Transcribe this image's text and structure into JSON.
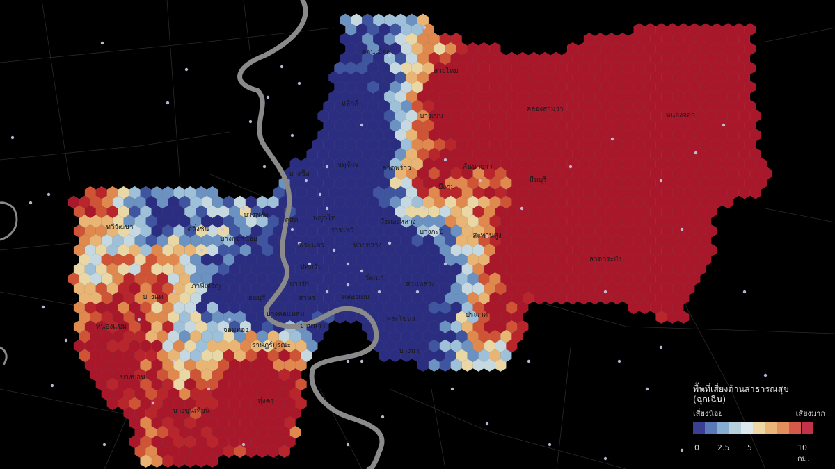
{
  "map": {
    "district_labels": [
      {
        "name": "ดอนเมือง"
      },
      {
        "name": "สายไหม"
      },
      {
        "name": "หลักสี่"
      },
      {
        "name": "คลองสามวา"
      },
      {
        "name": "หนองจอก"
      },
      {
        "name": "บางเขน"
      },
      {
        "name": "บางซื่อ"
      },
      {
        "name": "จตุจักร"
      },
      {
        "name": "ลาดพร้าว"
      },
      {
        "name": "คันนายาว"
      },
      {
        "name": "มีนบุรี"
      },
      {
        "name": "บึงกุ่ม"
      },
      {
        "name": "ทวีวัฒนา"
      },
      {
        "name": "ตลิ่งชัน"
      },
      {
        "name": "บางพลัด"
      },
      {
        "name": "ดุสิต"
      },
      {
        "name": "พญาไท"
      },
      {
        "name": "ราชเทวี"
      },
      {
        "name": "ห้วยขวาง"
      },
      {
        "name": "วังทองหลาง"
      },
      {
        "name": "บางกะปิ"
      },
      {
        "name": "สะพานสูง"
      },
      {
        "name": "ลาดกระบัง"
      },
      {
        "name": "บางกอกน้อย"
      },
      {
        "name": "พระนคร"
      },
      {
        "name": "ปทุมวัน"
      },
      {
        "name": "วัฒนา"
      },
      {
        "name": "สวนหลวง"
      },
      {
        "name": "ภาษีเจริญ"
      },
      {
        "name": "ธนบุรี"
      },
      {
        "name": "บางรัก"
      },
      {
        "name": "สาทร"
      },
      {
        "name": "คลองเตย"
      },
      {
        "name": "บางแค"
      },
      {
        "name": "หนองแขม"
      },
      {
        "name": "บางคอแหลม"
      },
      {
        "name": "ยานนาวา"
      },
      {
        "name": "พระโขนง"
      },
      {
        "name": "ประเวศ"
      },
      {
        "name": "จอมทอง"
      },
      {
        "name": "ราษฎร์บูรณะ"
      },
      {
        "name": "บางนา"
      },
      {
        "name": "บางบอน"
      },
      {
        "name": "ทุ่งครุ"
      },
      {
        "name": "บางขุนเทียน"
      }
    ],
    "palette": [
      "#2b2d80",
      "#3f55a0",
      "#6c92c2",
      "#9ec0d8",
      "#c6d8e0",
      "#e9d7a6",
      "#e8b574",
      "#e0894e",
      "#cf5436",
      "#b8262c",
      "#a8182a"
    ]
  },
  "legend": {
    "title_line1": "พื้นที่เสี่ยงด้านสาธารณสุข",
    "title_line2": "(ฉุกเฉิน)",
    "low_label": "เสี่ยงน้อย",
    "high_label": "เสี่ยงมาก",
    "colors": [
      "#3b3f93",
      "#5a7ab7",
      "#86acd0",
      "#b5cfdd",
      "#dbe7ea",
      "#eed7a4",
      "#eab677",
      "#e38f5d",
      "#d4594b",
      "#c2334b"
    ]
  },
  "scale": {
    "ticks": [
      "0",
      "2.5",
      "5",
      "10 กม."
    ],
    "values_km": [
      0,
      2.5,
      5,
      10
    ]
  }
}
